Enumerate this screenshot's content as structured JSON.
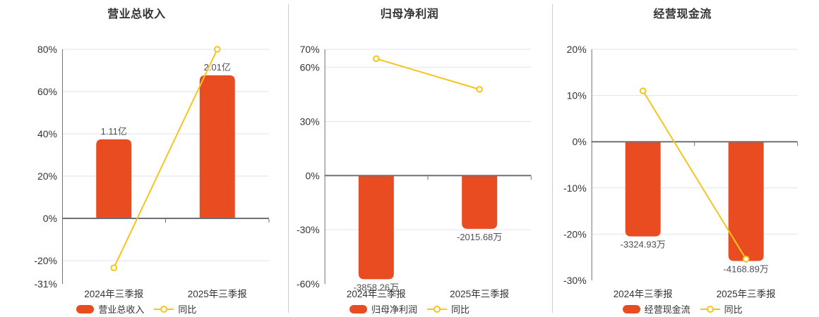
{
  "colors": {
    "background": "#ffffff",
    "bar": "#e84c20",
    "line": "#f5c51d",
    "marker_fill": "#ffffff",
    "grid": "#dee4f0",
    "axis": "#6e7079",
    "title_text": "#333333",
    "label_text": "#333333",
    "value_text": "#4e5055",
    "divider": "#cccccc"
  },
  "chart_data": [
    {
      "type": "bar",
      "combo": "bar+line",
      "title": "营业总收入",
      "categories": [
        "2024年三季报",
        "2025年三季报"
      ],
      "ylim": [
        -31,
        80
      ],
      "grid": true,
      "legend_position": "bottom",
      "y_ticks": [
        {
          "v": 80,
          "label": "80%"
        },
        {
          "v": 60,
          "label": "60%"
        },
        {
          "v": 40,
          "label": "40%"
        },
        {
          "v": 20,
          "label": "20%"
        },
        {
          "v": 0,
          "label": "0%"
        },
        {
          "v": -20,
          "label": "-20%"
        },
        {
          "v": -31,
          "label": "-31%"
        }
      ],
      "bar_series": {
        "name": "营业总收入",
        "value_labels": [
          "1.11亿",
          "2.01亿"
        ],
        "plotted_pct": [
          37.4,
          67.7
        ]
      },
      "line_series": {
        "name": "同比",
        "values_pct": [
          -23.4,
          80.0
        ]
      },
      "legend": [
        {
          "label": "营业总收入",
          "type": "bar"
        },
        {
          "label": "同比",
          "type": "line"
        }
      ]
    },
    {
      "type": "bar",
      "combo": "bar+line",
      "title": "归母净利润",
      "categories": [
        "2024年三季报",
        "2025年三季报"
      ],
      "ylim": [
        -60,
        70
      ],
      "grid": true,
      "legend_position": "bottom",
      "y_ticks": [
        {
          "v": 70,
          "label": "70%"
        },
        {
          "v": 60,
          "label": "60%"
        },
        {
          "v": 30,
          "label": "30%"
        },
        {
          "v": 0,
          "label": "0%"
        },
        {
          "v": -30,
          "label": "-30%"
        },
        {
          "v": -60,
          "label": "-60%"
        }
      ],
      "bar_series": {
        "name": "归母净利润",
        "value_labels": [
          "-3858.26万",
          "-2015.68万"
        ],
        "plotted_pct": [
          -57.4,
          -29.5
        ]
      },
      "line_series": {
        "name": "同比",
        "values_pct": [
          64.8,
          47.8
        ]
      },
      "legend": [
        {
          "label": "归母净利润",
          "type": "bar"
        },
        {
          "label": "同比",
          "type": "line"
        }
      ]
    },
    {
      "type": "bar",
      "combo": "bar+line",
      "title": "经营现金流",
      "categories": [
        "2024年三季报",
        "2025年三季报"
      ],
      "ylim": [
        -30,
        20
      ],
      "grid": true,
      "legend_position": "bottom",
      "y_ticks": [
        {
          "v": 20,
          "label": "20%"
        },
        {
          "v": 10,
          "label": "10%"
        },
        {
          "v": 0,
          "label": "0%"
        },
        {
          "v": -10,
          "label": "-10%"
        },
        {
          "v": -20,
          "label": "-20%"
        },
        {
          "v": -30,
          "label": "-30%"
        }
      ],
      "bar_series": {
        "name": "经营现金流",
        "value_labels": [
          "-3324.93万",
          "-4168.89万"
        ],
        "plotted_pct": [
          -20.5,
          -25.8
        ]
      },
      "line_series": {
        "name": "同比",
        "values_pct": [
          11.0,
          -25.4
        ]
      },
      "legend": [
        {
          "label": "经营现金流",
          "type": "bar"
        },
        {
          "label": "同比",
          "type": "line"
        }
      ]
    }
  ]
}
